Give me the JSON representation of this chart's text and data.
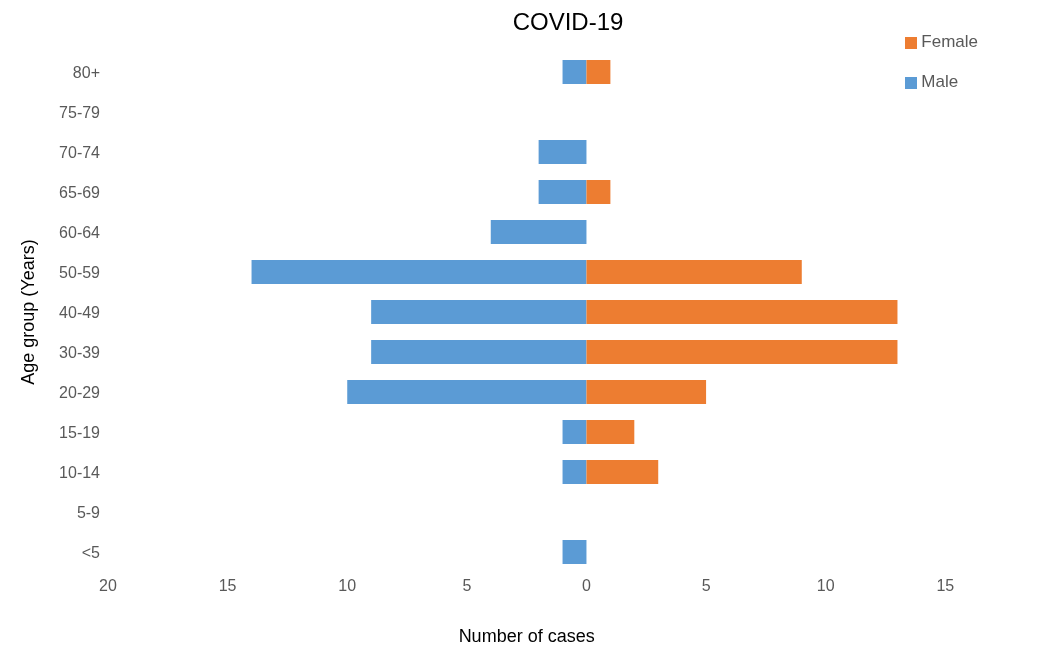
{
  "chart_data": {
    "type": "bar",
    "orientation": "horizontal",
    "stacked": true,
    "title": "COVID-19",
    "xlabel": "Number of cases",
    "ylabel": "Age group (Years)",
    "categories": [
      "80+",
      "75-79",
      "70-74",
      "65-69",
      "60-64",
      "50-59",
      "40-49",
      "30-39",
      "20-29",
      "15-19",
      "10-14",
      "5-9",
      "<5"
    ],
    "series": [
      {
        "name": "Male",
        "color": "#5b9bd5",
        "values": [
          -1,
          null,
          -2,
          -2,
          -4,
          -14,
          -9,
          -9,
          -10,
          -1,
          -1,
          null,
          -1
        ]
      },
      {
        "name": "Female",
        "color": "#ed7d31",
        "values": [
          1,
          null,
          null,
          1,
          null,
          9,
          13,
          13,
          5,
          2,
          3,
          null,
          null
        ]
      }
    ],
    "xlim": [
      -20,
      15
    ],
    "xticks": [
      {
        "value": -20,
        "label": "20"
      },
      {
        "value": -15,
        "label": "15"
      },
      {
        "value": -10,
        "label": "10"
      },
      {
        "value": -5,
        "label": "5"
      },
      0,
      5,
      10,
      15
    ],
    "grid": false,
    "legend": "top right"
  }
}
